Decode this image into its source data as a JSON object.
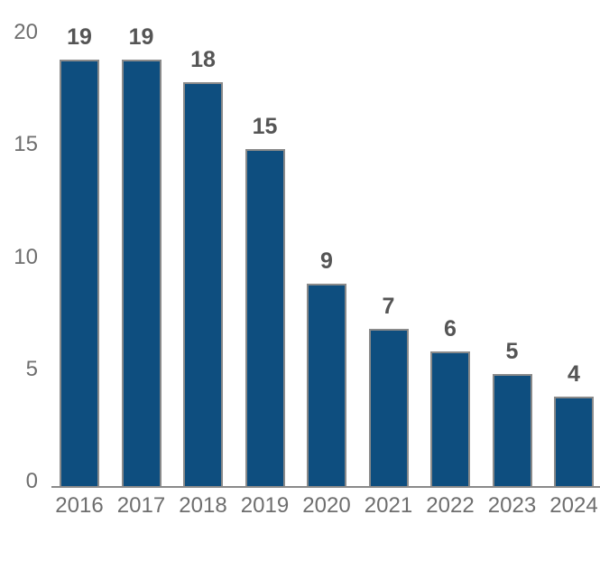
{
  "chart_data": {
    "type": "bar",
    "title": "",
    "xlabel": "",
    "ylabel": "",
    "categories": [
      "2016",
      "2017",
      "2018",
      "2019",
      "2020",
      "2021",
      "2022",
      "2023",
      "2024"
    ],
    "values": [
      19,
      19,
      18,
      15,
      9,
      7,
      6,
      5,
      4
    ],
    "value_labels": [
      "19",
      "19",
      "18",
      "15",
      "9",
      "7",
      "6",
      "5",
      "4"
    ],
    "ylim": [
      0,
      20
    ],
    "yticks": [
      0,
      5,
      10,
      15,
      20
    ],
    "ytick_labels": [
      "0",
      "5",
      "10",
      "15",
      "20"
    ],
    "grid": false,
    "legend": "none",
    "colors": {
      "bar_fill": "#0E4E7F",
      "bar_outline": "#8A8A8A",
      "axis_line": "#8A8A8A",
      "tick_label_text": "#6E6E6E",
      "value_label_text": "#555555",
      "background": "#FFFFFF"
    }
  }
}
